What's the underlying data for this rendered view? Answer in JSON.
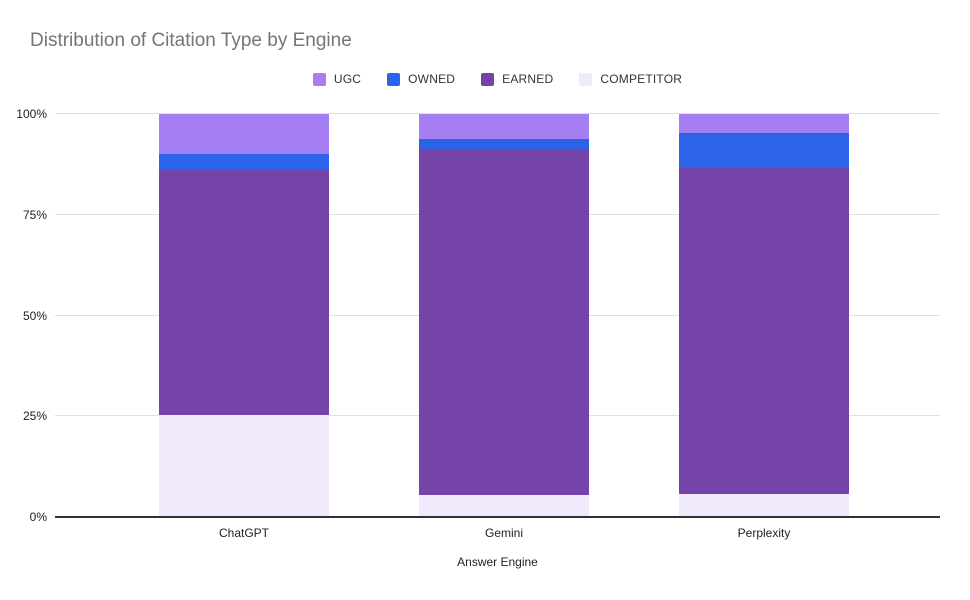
{
  "title": "Distribution of Citation Type by Engine",
  "colors": {
    "ugc": "#a47ef2",
    "owned": "#2b64e8",
    "earned": "#7544a8",
    "competitor": "#f0e9fc",
    "gridline": "#e0e0e0",
    "axis_line": "#333333",
    "title_text": "#757575",
    "tick_text": "#222222",
    "background": "#ffffff"
  },
  "chart_data": {
    "type": "bar",
    "stacked": true,
    "percent_stacked": true,
    "title": "Distribution of Citation Type by Engine",
    "xlabel": "Answer Engine",
    "ylabel": "",
    "categories": [
      "ChatGPT",
      "Gemini",
      "Perplexity"
    ],
    "legend_position": "top",
    "legend_order": [
      "UGC",
      "OWNED",
      "EARNED",
      "COMPETITOR"
    ],
    "stack_order_bottom_to_top": [
      "COMPETITOR",
      "EARNED",
      "OWNED",
      "UGC"
    ],
    "series": [
      {
        "name": "UGC",
        "color": "#a47ef2",
        "values": [
          10.0,
          6.2,
          4.8
        ]
      },
      {
        "name": "OWNED",
        "color": "#2b64e8",
        "values": [
          4.0,
          2.5,
          8.5
        ]
      },
      {
        "name": "EARNED",
        "color": "#7544a8",
        "values": [
          60.7,
          85.8,
          80.9
        ]
      },
      {
        "name": "COMPETITOR",
        "color": "#f0e9fc",
        "values": [
          25.3,
          5.5,
          5.8
        ]
      }
    ],
    "yticks": [
      "0%",
      "25%",
      "50%",
      "75%",
      "100%"
    ],
    "ylim": [
      0,
      100
    ],
    "grid": true
  }
}
